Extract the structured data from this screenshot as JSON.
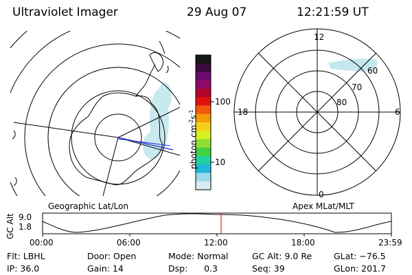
{
  "header": {
    "instrument": "Ultraviolet Imager",
    "date": "29 Aug 07",
    "time": "12:21:59 UT"
  },
  "colorbar": {
    "unit_main": "photon cm",
    "unit_sup1": "-2",
    "unit_s": "s",
    "unit_sup2": "-1",
    "tick_high": "100",
    "tick_low": "10",
    "colors": [
      "#161616",
      "#3a0a3a",
      "#6a0a6a",
      "#8c0a6a",
      "#b0062e",
      "#e01010",
      "#f05a0a",
      "#f59a08",
      "#f5d018",
      "#d8f020",
      "#90e030",
      "#40d040",
      "#20d0a0",
      "#20b8d8",
      "#9ad8ec",
      "#d8ecf4"
    ]
  },
  "left_panel": {
    "label": "Geographic Lat/Lon",
    "outline_color": "#000000",
    "track_color": "#1a2ad0",
    "aurora_color": "#bfe6ec"
  },
  "right_panel": {
    "label": "Apex  MLat/MLT",
    "mlt_12": "12",
    "mlt_18": "18",
    "mlt_6": "6",
    "mlt_0": "0",
    "lat_60": "60",
    "lat_70": "70",
    "lat_80": "80"
  },
  "altitude_plot": {
    "ylabel": "GC Alt",
    "y_top": "9.0",
    "y_bottom": "1.8",
    "x_ticks": [
      "00:00",
      "06:00",
      "12:00",
      "18:00",
      "23:59"
    ],
    "marker_color": "#e00000"
  },
  "footer": {
    "filter": "Flt: LBHL",
    "ip": "IP: 36.0",
    "door": "Door: Open",
    "gain": "Gain: 14",
    "mode": "Mode: Normal",
    "dsp": "Dsp:      0.3",
    "gc_alt": "GC Alt: 9.0 Re",
    "seq": "Seq: 39",
    "glat": "GLat: −76.5",
    "glon": "GLon: 201.7"
  }
}
